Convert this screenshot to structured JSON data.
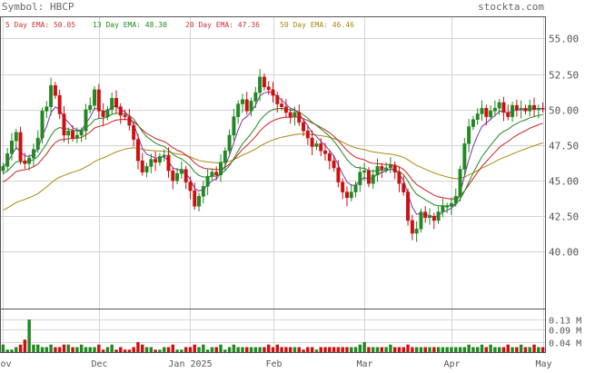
{
  "header": {
    "symbol_text": "Symbol: HBCP",
    "watermark": "stockta.com"
  },
  "legend": [
    {
      "text": "5 Day EMA: 50.05",
      "color": "#cc3333"
    },
    {
      "text": "13 Day EMA: 48.30",
      "color": "#228822"
    },
    {
      "text": "20 Day EMA: 47.36",
      "color": "#cc3333"
    },
    {
      "text": "50 Day EMA: 46.46",
      "color": "#aa8811"
    }
  ],
  "colors": {
    "up": "#228822",
    "down": "#cc1111",
    "ema5": "#7733aa",
    "ema13": "#228822",
    "ema20": "#cc2222",
    "ema50": "#aa8811",
    "grid": "#d4d4d4",
    "text": "#555555"
  },
  "chart_data": {
    "type": "candlestick",
    "x_labels": [
      "Nov",
      "Dec",
      "Jan 2025",
      "Feb",
      "Mar",
      "Apr",
      "May"
    ],
    "x_label_positions": [
      0,
      22,
      43,
      62,
      83,
      103,
      124
    ],
    "price_ticks": [
      "55.00",
      "52.50",
      "50.00",
      "47.50",
      "45.00",
      "42.50",
      "40.00"
    ],
    "price_tick_values": [
      55,
      52.5,
      50,
      47.5,
      45,
      42.5,
      40
    ],
    "ylim": [
      36.0,
      56.5
    ],
    "volume_ticks": [
      "0.13 M",
      "0.09 M",
      "0.04 M"
    ],
    "volume_tick_values": [
      0.13,
      0.09,
      0.04
    ],
    "volume_ylim": [
      0,
      0.17
    ],
    "closes": [
      46.0,
      46.9,
      47.8,
      48.4,
      46.4,
      46.2,
      46.6,
      47.2,
      48.0,
      49.9,
      50.2,
      51.7,
      51.0,
      49.7,
      48.2,
      48.5,
      48.0,
      48.2,
      48.5,
      50.0,
      50.3,
      51.4,
      49.9,
      49.5,
      50.0,
      50.8,
      50.2,
      49.6,
      49.5,
      48.9,
      47.9,
      46.4,
      45.6,
      46.0,
      46.5,
      46.3,
      46.7,
      46.8,
      45.7,
      45.0,
      45.5,
      45.8,
      44.9,
      44.3,
      43.2,
      43.9,
      44.6,
      45.3,
      45.6,
      45.4,
      46.3,
      47.1,
      48.2,
      49.5,
      50.4,
      50.7,
      49.9,
      50.6,
      51.2,
      52.3,
      51.6,
      51.4,
      51.0,
      50.4,
      50.2,
      49.8,
      49.5,
      49.8,
      49.1,
      48.5,
      48.0,
      47.4,
      47.6,
      47.1,
      46.9,
      46.4,
      45.9,
      44.9,
      44.2,
      43.8,
      44.2,
      44.7,
      45.6,
      45.7,
      44.8,
      45.4,
      46.0,
      45.8,
      45.9,
      46.1,
      45.6,
      44.8,
      44.2,
      42.2,
      41.3,
      41.6,
      42.8,
      42.4,
      42.5,
      42.2,
      42.8,
      43.2,
      43.2,
      43.4,
      43.9,
      45.8,
      47.6,
      48.8,
      49.3,
      49.7,
      50.1,
      49.5,
      49.9,
      50.1,
      50.5,
      49.8,
      49.5,
      50.3,
      50.0,
      50.1,
      49.9,
      50.3,
      50.0,
      50.1,
      50.05
    ],
    "volumes": [
      0.03,
      0.01,
      0.01,
      0.02,
      0.03,
      0.05,
      0.13,
      0.03,
      0.03,
      0.02,
      0.02,
      0.03,
      0.02,
      0.02,
      0.03,
      0.03,
      0.02,
      0.02,
      0.03,
      0.02,
      0.02,
      0.02,
      0.03,
      0.01,
      0.02,
      0.03,
      0.01,
      0.02,
      0.01,
      0.01,
      0.02,
      0.04,
      0.03,
      0.02,
      0.02,
      0.01,
      0.01,
      0.02,
      0.02,
      0.03,
      0.01,
      0.01,
      0.02,
      0.02,
      0.03,
      0.02,
      0.03,
      0.01,
      0.02,
      0.02,
      0.03,
      0.01,
      0.02,
      0.03,
      0.02,
      0.02,
      0.02,
      0.02,
      0.02,
      0.02,
      0.02,
      0.03,
      0.02,
      0.03,
      0.02,
      0.02,
      0.02,
      0.02,
      0.02,
      0.01,
      0.02,
      0.02,
      0.01,
      0.02,
      0.02,
      0.02,
      0.02,
      0.02,
      0.02,
      0.02,
      0.02,
      0.02,
      0.03,
      0.04,
      0.02,
      0.02,
      0.02,
      0.02,
      0.02,
      0.03,
      0.02,
      0.02,
      0.02,
      0.03,
      0.02,
      0.02,
      0.02,
      0.02,
      0.02,
      0.02,
      0.02,
      0.02,
      0.02,
      0.02,
      0.02,
      0.02,
      0.02,
      0.03,
      0.02,
      0.02,
      0.03,
      0.02,
      0.03,
      0.02,
      0.02,
      0.02,
      0.03,
      0.02,
      0.02,
      0.03,
      0.02,
      0.02,
      0.03,
      0.02,
      0.02
    ]
  }
}
